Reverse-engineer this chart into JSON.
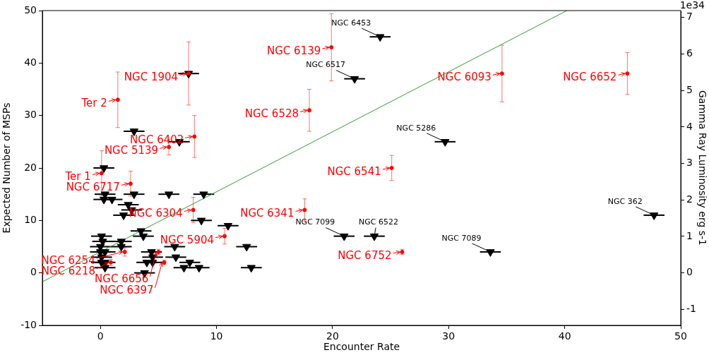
{
  "chart_data": {
    "type": "scatter",
    "xlabel": "Encounter Rate",
    "ylabel": "Expected Number of MSPs",
    "y2label": "Gamma Ray Luminosity erg s-1",
    "xlim": [
      -5,
      50
    ],
    "xticks": [
      0,
      10,
      20,
      30,
      40,
      50
    ],
    "ylim": [
      -10,
      50
    ],
    "yticks": [
      -10,
      0,
      10,
      20,
      30,
      40,
      50
    ],
    "y2lim": [
      -1.44,
      7.19
    ],
    "y2ticks": [
      -1,
      0,
      1,
      2,
      3,
      4,
      5,
      6,
      7
    ],
    "grid": false,
    "legend": false,
    "series": [
      {
        "type": "scatter",
        "marker": "circle",
        "color": "#ff0000",
        "x": [
          1.5,
          7.6,
          8.1,
          5.9,
          0.1,
          2.6,
          8,
          10.7,
          2.1,
          0.9,
          5,
          5.5,
          19.9,
          18,
          34.6,
          25.1,
          17.6,
          26,
          45.4
        ],
        "values": [
          33,
          38,
          26,
          24,
          19,
          17,
          12,
          7,
          4,
          2,
          4,
          2,
          43,
          31,
          38,
          20,
          12,
          4,
          38
        ],
        "errors": [
          5.3,
          6,
          4,
          1.5,
          4.3,
          2.4,
          2.4,
          1.5,
          0.8,
          0.6,
          0.5,
          0.4,
          6.4,
          4,
          5.4,
          2.4,
          2.1,
          0.5,
          4
        ]
      },
      {
        "type": "scatter",
        "marker": "triangle",
        "color": "#000000",
        "x": [
          7.6,
          24.1,
          21.9,
          29.7,
          21,
          23.6,
          33.6,
          47.7,
          2.9,
          6.8,
          0.3,
          0.4,
          2.9,
          5.9,
          8.9,
          0.3,
          1,
          2.4,
          2.7,
          2,
          8.7,
          11,
          3.5,
          0.1,
          3.7,
          0.2,
          1.8,
          0,
          1.8,
          6.4,
          12.6,
          0,
          0.4,
          4.4,
          0.1,
          4.5,
          6.5,
          0.1,
          0.4,
          4,
          4.5,
          7.7,
          0.4,
          7.2,
          8.5,
          13,
          3.8
        ],
        "values": [
          38,
          45,
          37,
          25,
          7,
          7,
          4,
          11,
          27,
          25,
          20,
          15,
          15,
          15,
          15,
          14,
          14,
          13,
          12,
          11,
          10,
          9,
          8,
          7,
          7,
          6,
          6,
          5,
          5,
          5,
          5,
          4,
          4,
          4,
          3,
          3,
          3,
          2,
          2,
          2,
          2,
          2,
          1,
          1,
          1,
          1,
          0
        ],
        "xerrors": [
          0.9,
          0.9,
          0.9,
          0.9,
          0.9,
          0.9,
          0.9,
          0.9,
          0.9,
          0.9,
          0.9,
          0.9,
          0.9,
          0.9,
          0.9,
          0.9,
          0.9,
          0.9,
          0.9,
          0.9,
          0.9,
          0.9,
          0.9,
          0.9,
          0.9,
          0.9,
          0.9,
          0.9,
          0.9,
          0.9,
          0.9,
          0.9,
          0.9,
          0.9,
          0.9,
          0.9,
          0.9,
          0.9,
          0.9,
          0.9,
          0.9,
          0.9,
          0.9,
          0.9,
          0.9,
          0.9,
          0.9
        ]
      },
      {
        "type": "line",
        "color": "#2e9e2e",
        "x": [
          -5,
          40.2
        ],
        "values": [
          -1.7,
          50
        ]
      }
    ],
    "annotations": [
      {
        "text": "Ter 2",
        "x": 1.5,
        "y": 33
      },
      {
        "text": "NGC 1904",
        "x": 7.6,
        "y": 38
      },
      {
        "text": "NGC 6402",
        "x": 8.1,
        "y": 26
      },
      {
        "text": "NGC 5139",
        "x": 5.9,
        "y": 24
      },
      {
        "text": "Ter 1",
        "x": 0.1,
        "y": 19
      },
      {
        "text": "NGC 6717",
        "x": 2.6,
        "y": 17
      },
      {
        "text": "NGC 6304",
        "x": 8,
        "y": 12
      },
      {
        "text": "NGC 5904",
        "x": 10.7,
        "y": 7
      },
      {
        "text": "NGC 6254",
        "x": 2.1,
        "y": 4
      },
      {
        "text": "NGC 6218",
        "x": 0.9,
        "y": 2
      },
      {
        "text": "NGC 6656",
        "x": 5,
        "y": 4
      },
      {
        "text": "NGC 6397",
        "x": 5.5,
        "y": 2
      },
      {
        "text": "NGC 6139",
        "x": 19.9,
        "y": 43
      },
      {
        "text": "NGC 6528",
        "x": 18,
        "y": 31
      },
      {
        "text": "NGC 6093",
        "x": 34.6,
        "y": 38
      },
      {
        "text": "NGC 6541",
        "x": 25.1,
        "y": 20
      },
      {
        "text": "NGC 6341",
        "x": 17.6,
        "y": 12
      },
      {
        "text": "NGC 6752",
        "x": 26,
        "y": 4
      },
      {
        "text": "NGC 6652",
        "x": 45.4,
        "y": 38
      },
      {
        "text": "NGC 6453",
        "x": 24.1,
        "y": 45
      },
      {
        "text": "NGC 6517",
        "x": 21.9,
        "y": 37
      },
      {
        "text": "NGC 5286",
        "x": 29.7,
        "y": 25
      },
      {
        "text": "NGC 7099",
        "x": 21,
        "y": 7
      },
      {
        "text": "NGC 6522",
        "x": 23.6,
        "y": 7
      },
      {
        "text": "NGC 7089",
        "x": 33.6,
        "y": 4
      },
      {
        "text": "NGC 362",
        "x": 47.7,
        "y": 11
      },
      "1e34"
    ]
  }
}
